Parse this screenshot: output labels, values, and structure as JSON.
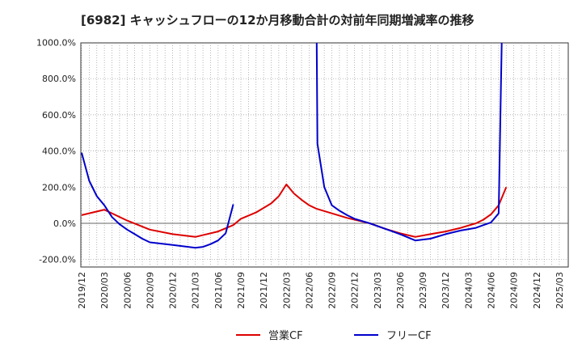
{
  "chart_data": {
    "type": "line",
    "title": "[6982]  キャッシュフローの12か月移動合計の対前年同期増減率の推移",
    "xlabel": "",
    "ylabel": "",
    "ylim": [
      -200,
      1000
    ],
    "y_ticks": [
      -200,
      0,
      200,
      400,
      600,
      800,
      1000
    ],
    "y_tick_labels": [
      "-200.0%",
      "0.0%",
      "200.0%",
      "400.0%",
      "600.0%",
      "800.0%",
      "1000.0%"
    ],
    "x_tick_labels": [
      "2019/12",
      "2020/03",
      "2020/06",
      "2020/09",
      "2020/12",
      "2021/03",
      "2021/06",
      "2021/09",
      "2021/12",
      "2022/03",
      "2022/06",
      "2022/09",
      "2022/12",
      "2023/03",
      "2023/06",
      "2023/09",
      "2023/12",
      "2024/03",
      "2024/06",
      "2024/09",
      "2024/12",
      "2025/03"
    ],
    "grid": true,
    "legend_position": "bottom",
    "series": [
      {
        "name": "営業CF",
        "color": "#dd0000",
        "values": [
          [
            0,
            45
          ],
          [
            3,
            75
          ],
          [
            6,
            15
          ],
          [
            9,
            -35
          ],
          [
            12,
            -60
          ],
          [
            15,
            -75
          ],
          [
            18,
            -45
          ],
          [
            20,
            -10
          ],
          [
            21,
            25
          ],
          [
            23,
            60
          ],
          [
            25,
            110
          ],
          [
            26,
            150
          ],
          [
            27,
            215
          ],
          [
            28,
            165
          ],
          [
            29,
            130
          ],
          [
            30,
            100
          ],
          [
            31,
            80
          ],
          [
            33,
            55
          ],
          [
            35,
            30
          ],
          [
            38,
            0
          ],
          [
            40,
            -30
          ],
          [
            42,
            -55
          ],
          [
            44,
            -75
          ],
          [
            46,
            -60
          ],
          [
            48,
            -45
          ],
          [
            50,
            -25
          ],
          [
            52,
            0
          ],
          [
            53,
            20
          ],
          [
            54,
            50
          ],
          [
            55,
            100
          ],
          [
            56,
            200
          ]
        ]
      },
      {
        "name": "フリーCF",
        "color": "#0000cc",
        "values": [
          [
            0,
            390
          ],
          [
            1,
            235
          ],
          [
            2,
            150
          ],
          [
            3,
            100
          ],
          [
            4,
            35
          ],
          [
            5,
            -5
          ],
          [
            6,
            -35
          ],
          [
            7,
            -60
          ],
          [
            8,
            -85
          ],
          [
            9,
            -105
          ],
          [
            12,
            -120
          ],
          [
            15,
            -135
          ],
          [
            16,
            -130
          ],
          [
            17,
            -115
          ],
          [
            18,
            -95
          ],
          [
            19,
            -55
          ],
          [
            20,
            105
          ],
          null,
          [
            31,
            1000
          ],
          [
            31.1,
            440
          ],
          [
            32,
            200
          ],
          [
            33,
            100
          ],
          [
            34,
            70
          ],
          [
            35,
            45
          ],
          [
            36,
            25
          ],
          [
            38,
            0
          ],
          [
            40,
            -30
          ],
          [
            42,
            -60
          ],
          [
            44,
            -95
          ],
          [
            46,
            -85
          ],
          [
            48,
            -60
          ],
          [
            50,
            -40
          ],
          [
            52,
            -25
          ],
          [
            53,
            -10
          ],
          [
            54,
            5
          ],
          [
            55,
            55
          ],
          [
            55.4,
            1000
          ]
        ]
      }
    ]
  }
}
